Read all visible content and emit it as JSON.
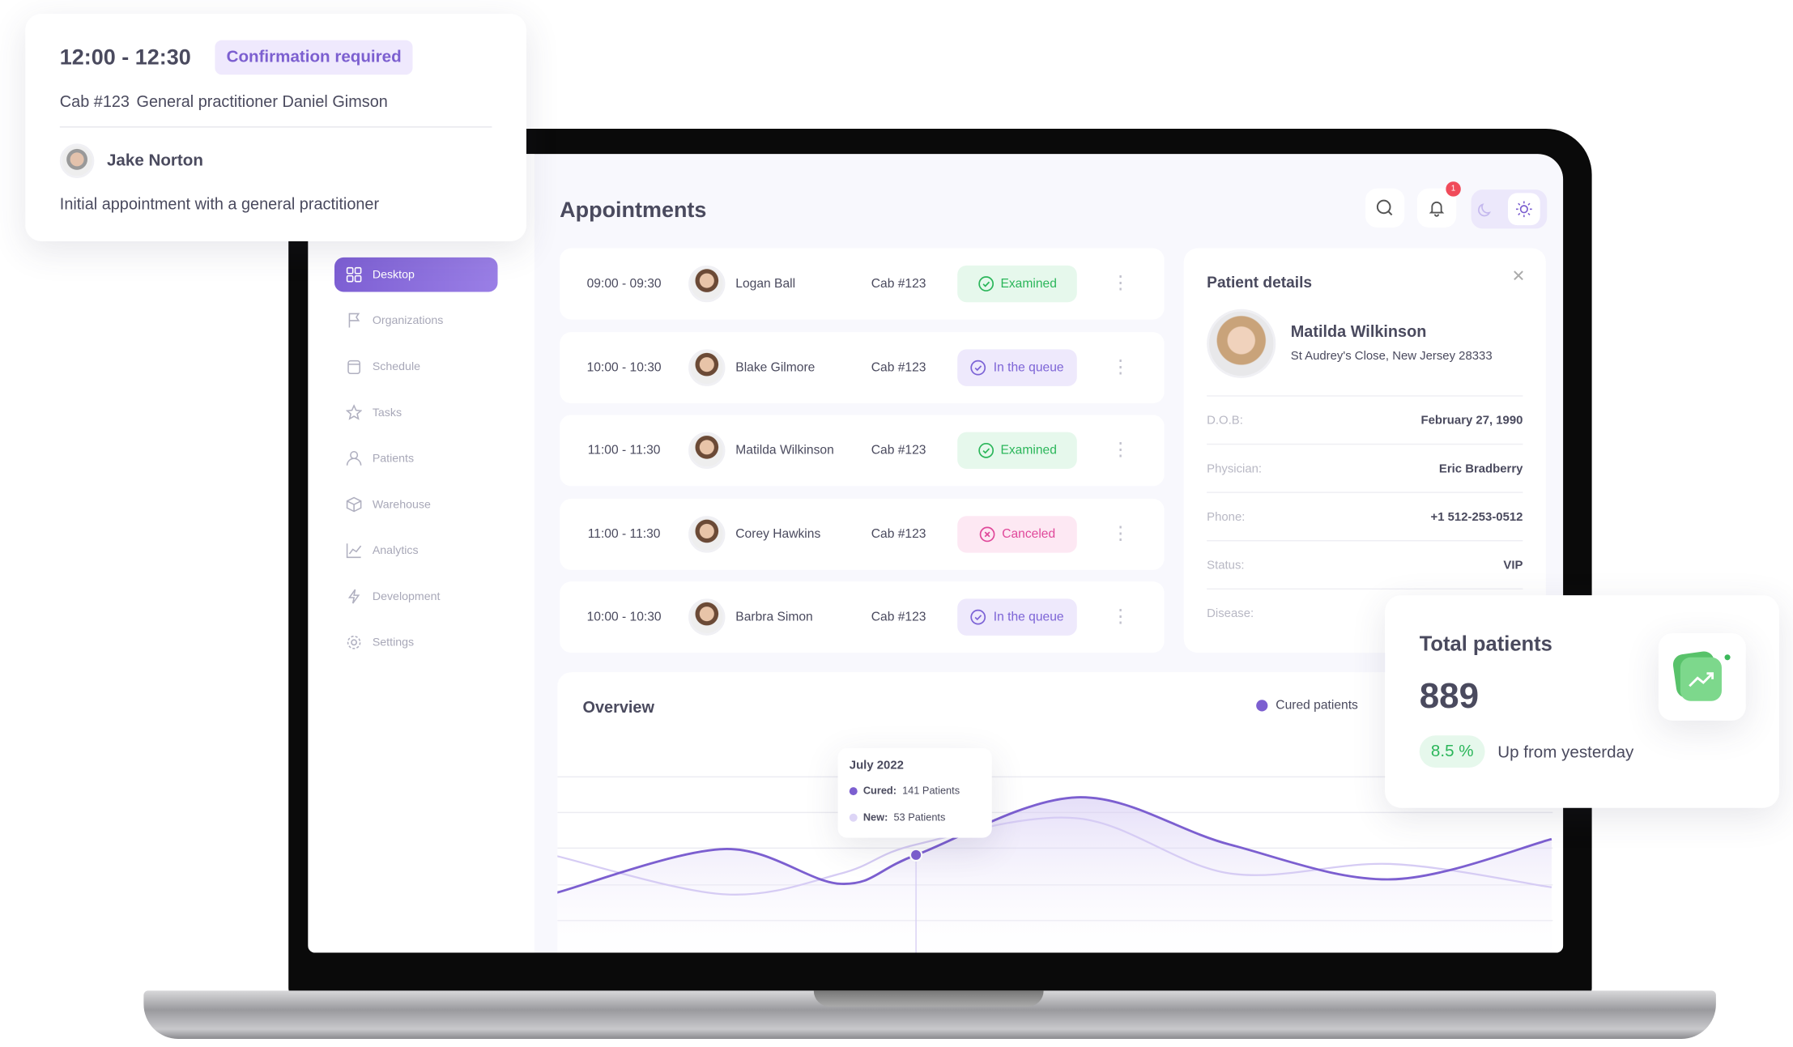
{
  "popup": {
    "time": "12:00 - 12:30",
    "badge": "Confirmation required",
    "cab": "Cab #123",
    "doctor": "General practitioner Daniel Gimson",
    "patient": "Jake Norton",
    "description": "Initial appointment with a general practitioner"
  },
  "sidebar": {
    "items": [
      {
        "label": "Desktop",
        "icon": "grid-icon",
        "active": true
      },
      {
        "label": "Organizations",
        "icon": "flag-icon"
      },
      {
        "label": "Schedule",
        "icon": "calendar-icon"
      },
      {
        "label": "Tasks",
        "icon": "star-icon"
      },
      {
        "label": "Patients",
        "icon": "user-icon"
      },
      {
        "label": "Warehouse",
        "icon": "box-icon"
      },
      {
        "label": "Analytics",
        "icon": "chart-icon"
      },
      {
        "label": "Development",
        "icon": "bolt-icon"
      },
      {
        "label": "Settings",
        "icon": "gear-icon"
      }
    ]
  },
  "header": {
    "title": "Appointments",
    "notification_count": "1"
  },
  "appointments": [
    {
      "time": "09:00 - 09:30",
      "name": "Logan Ball",
      "cab": "Cab #123",
      "status": "Examined"
    },
    {
      "time": "10:00 - 10:30",
      "name": "Blake Gilmore",
      "cab": "Cab #123",
      "status": "In the queue"
    },
    {
      "time": "11:00 - 11:30",
      "name": "Matilda Wilkinson",
      "cab": "Cab #123",
      "status": "Examined"
    },
    {
      "time": "11:00 - 11:30",
      "name": "Corey Hawkins",
      "cab": "Cab #123",
      "status": "Canceled"
    },
    {
      "time": "10:00 - 10:30",
      "name": "Barbra Simon",
      "cab": "Cab #123",
      "status": "In the queue"
    }
  ],
  "status_colors": {
    "Examined": {
      "bg": "#e6f8ec",
      "fg": "#2bb65a"
    },
    "In the queue": {
      "bg": "#eee9fc",
      "fg": "#7c63d6"
    },
    "Canceled": {
      "bg": "#fde8f3",
      "fg": "#e0489a"
    }
  },
  "patient_details": {
    "title": "Patient details",
    "name": "Matilda Wilkinson",
    "address": "St Audrey's Close, New Jersey 28333",
    "fields": [
      {
        "label": "D.O.B:",
        "value": "February 27, 1990"
      },
      {
        "label": "Physician:",
        "value": "Eric Bradberry"
      },
      {
        "label": "Phone:",
        "value": "+1 512-253-0512"
      },
      {
        "label": "Status:",
        "value": "VIP"
      },
      {
        "label": "Disease:",
        "value": ""
      }
    ]
  },
  "overview": {
    "title": "Overview",
    "legend": "Cured patients",
    "tooltip": {
      "title": "July 2022",
      "cured_label": "Cured:",
      "cured_value": "141 Patients",
      "new_label": "New:",
      "new_value": "53 Patients"
    }
  },
  "chart_data": {
    "type": "area",
    "legend_position": "top-right",
    "grid": true,
    "series": [
      {
        "name": "Cured patients",
        "color": "#7c5fd0",
        "values": [
          65,
          153,
          83,
          141,
          257,
          162,
          92,
          173
        ]
      },
      {
        "color": "#d6ccf4",
        "values": [
          139,
          62,
          104,
          162,
          215,
          104,
          123,
          76
        ]
      }
    ]
  },
  "total_patients": {
    "title": "Total patients",
    "value": "889",
    "change": "8.5 %",
    "change_text": "Up from yesterday"
  }
}
